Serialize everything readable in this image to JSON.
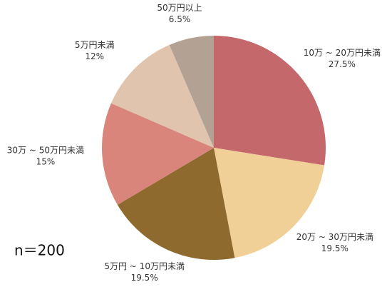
{
  "chart_data": {
    "type": "pie",
    "categories": [
      "10万 ~ 20万円未満",
      "20万 ~ 30万円未満",
      "5万円 ~ 10万円未満",
      "30万 ~ 50万円未満",
      "5万円未満",
      "50万円以上"
    ],
    "values": [
      27.5,
      19.5,
      19.5,
      15,
      12,
      6.5
    ],
    "value_labels": [
      "27.5%",
      "19.5%",
      "19.5%",
      "15%",
      "12%",
      "6.5%"
    ],
    "colors": [
      "#c4686b",
      "#f0d097",
      "#8e6a2e",
      "#d9857b",
      "#e0c4ad",
      "#b3a293"
    ],
    "annotation": "n＝200"
  }
}
